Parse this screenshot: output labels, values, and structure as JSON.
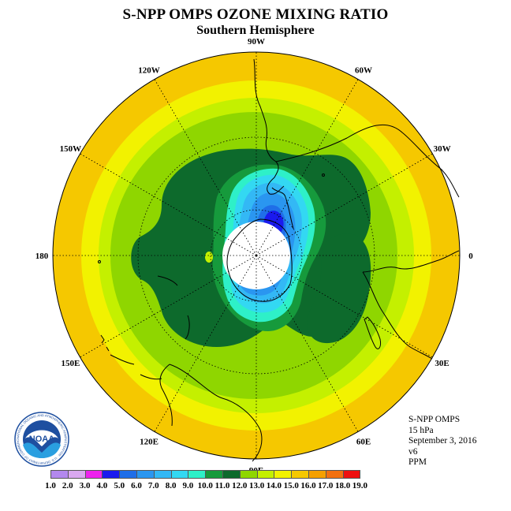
{
  "title": "S-NPP OMPS OZONE MIXING RATIO",
  "subtitle": "Southern Hemisphere",
  "lon_labels": [
    {
      "text": "90W",
      "deg": 0
    },
    {
      "text": "60W",
      "deg": 30
    },
    {
      "text": "30W",
      "deg": 60
    },
    {
      "text": "0",
      "deg": 90
    },
    {
      "text": "30E",
      "deg": 120
    },
    {
      "text": "60E",
      "deg": 150
    },
    {
      "text": "90E",
      "deg": 180
    },
    {
      "text": "120E",
      "deg": 210
    },
    {
      "text": "150E",
      "deg": 240
    },
    {
      "text": "180",
      "deg": 270
    },
    {
      "text": "150W",
      "deg": 300
    },
    {
      "text": "120W",
      "deg": 330
    }
  ],
  "info": {
    "instrument": "S-NPP OMPS",
    "level": "15 hPa",
    "date": "September 3, 2016",
    "version": "v6",
    "units": "PPM"
  },
  "legend": {
    "labels": [
      "1.0",
      "2.0",
      "3.0",
      "4.0",
      "5.0",
      "6.0",
      "7.0",
      "8.0",
      "9.0",
      "10.0",
      "11.0",
      "12.0",
      "13.0",
      "14.0",
      "15.0",
      "16.0",
      "17.0",
      "18.0",
      "19.0"
    ],
    "colors": [
      "#b388ee",
      "#d9a8f0",
      "#ee22ee",
      "#1a1aee",
      "#1f6ee8",
      "#2a96f0",
      "#33b8f5",
      "#33d8f2",
      "#2ef0c8",
      "#169a3c",
      "#0d6a2c",
      "#8fd600",
      "#c4f000",
      "#f2f200",
      "#f5c800",
      "#f5a000",
      "#f27010",
      "#ee1010",
      "#8b5a3c"
    ]
  },
  "logo": {
    "text": "NOAA",
    "ring_text": "NATIONAL OCEANIC AND ATMOSPHERIC ADMINISTRATION · U.S. DEPARTMENT OF COMMERCE"
  }
}
